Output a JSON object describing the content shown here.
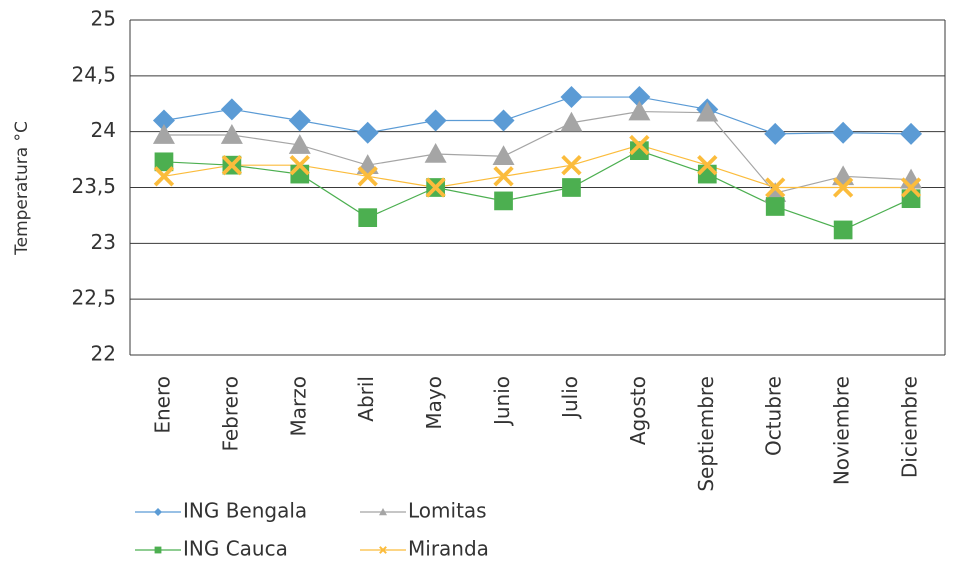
{
  "chart_data": {
    "type": "line",
    "y_label": "Temperatura °C",
    "categories": [
      "Enero",
      "Febrero",
      "Marzo",
      "Abril",
      "Mayo",
      "Junio",
      "Julio",
      "Agosto",
      "Septiembre",
      "Octubre",
      "Noviembre",
      "Diciembre"
    ],
    "series": [
      {
        "name": "ING Bengala",
        "color": "#5b9bd5",
        "marker": "diamond",
        "values": [
          24.1,
          24.2,
          24.1,
          23.99,
          24.1,
          24.1,
          24.31,
          24.31,
          24.2,
          23.98,
          23.99,
          23.98
        ]
      },
      {
        "name": "Lomitas",
        "color": "#a5a5a5",
        "marker": "triangle",
        "values": [
          23.97,
          23.97,
          23.88,
          23.7,
          23.8,
          23.78,
          24.08,
          24.18,
          24.17,
          23.45,
          23.6,
          23.57
        ]
      },
      {
        "name": "ING Cauca",
        "color": "#4caf50",
        "marker": "square",
        "values": [
          23.73,
          23.7,
          23.62,
          23.23,
          23.5,
          23.38,
          23.5,
          23.83,
          23.62,
          23.33,
          23.12,
          23.4
        ]
      },
      {
        "name": "Miranda",
        "color": "#fbbc3c",
        "marker": "x",
        "values": [
          23.6,
          23.7,
          23.7,
          23.6,
          23.5,
          23.6,
          23.7,
          23.88,
          23.7,
          23.5,
          23.5,
          23.5
        ]
      }
    ],
    "ylim": [
      22,
      25
    ],
    "yticks": [
      22,
      {
        "value": 22.5,
        "label": "22,5"
      },
      23,
      {
        "value": 23.5,
        "label": "23,5"
      },
      24,
      {
        "value": 24.5,
        "label": "24,5"
      },
      25
    ],
    "grid": true,
    "legend": "bottom-left"
  }
}
